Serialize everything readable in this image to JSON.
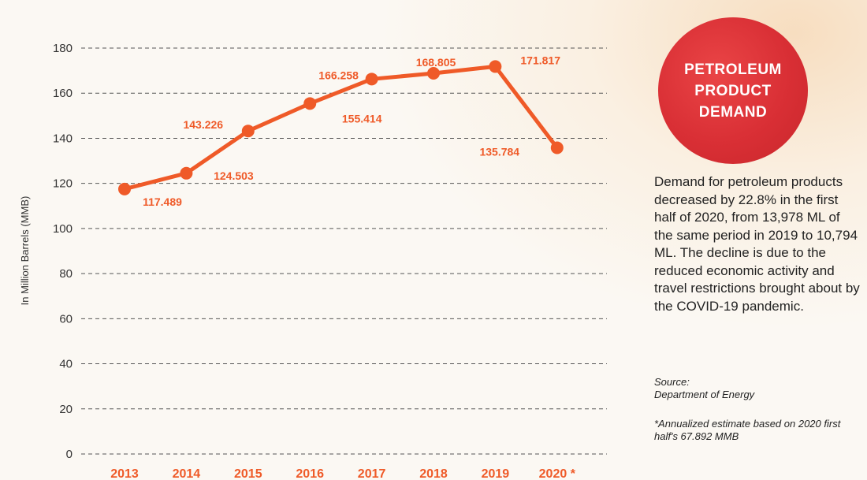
{
  "chart_data": {
    "type": "line",
    "title": "PETROLEUM\nPRODUCT\nDEMAND",
    "ylabel": "In Million Barrels (MMB)",
    "xlabel": "",
    "categories": [
      "2013",
      "2014",
      "2015",
      "2016",
      "2017",
      "2018",
      "2019",
      "2020*"
    ],
    "values": [
      117.489,
      124.503,
      143.226,
      155.414,
      166.258,
      168.805,
      171.817,
      135.784
    ],
    "data_labels": [
      "117.489",
      "124.503",
      "143.226",
      "155.414",
      "166.258",
      "168.805",
      "171.817",
      "135.784"
    ],
    "ylim": [
      0,
      180
    ],
    "yticks": [
      0,
      20,
      40,
      60,
      80,
      100,
      120,
      140,
      160,
      180
    ],
    "grid": true,
    "line_color": "#ef5a28"
  },
  "sidebar": {
    "description": "Demand for petroleum products decreased by 22.8% in the first half of 2020, from 13,978 ML of the same period in 2019 to 10,794 ML. The decline is due to the reduced economic activity and travel restrictions brought about by the COVID-19 pandemic.",
    "source": "Source:\nDepartment of Energy",
    "footnote": "*Annualized estimate based on 2020 first half's 67.892 MMB"
  },
  "colors": {
    "accent": "#ef5a28",
    "badge": "#d92f35"
  }
}
